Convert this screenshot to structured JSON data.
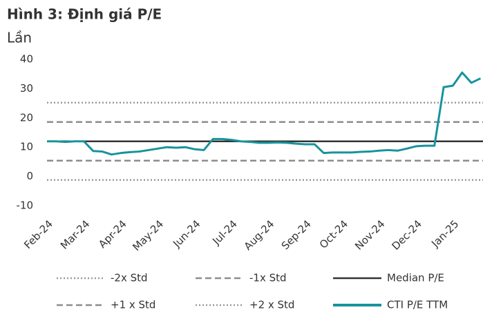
{
  "chart_data": {
    "type": "line",
    "title": "Hình 3: Định giá P/E",
    "y_label": "Lần",
    "ylim": [
      -10,
      40
    ],
    "yticks": [
      -10,
      0,
      10,
      20,
      30,
      40
    ],
    "categories": [
      "Feb-24",
      null,
      null,
      null,
      "Mar-24",
      null,
      null,
      null,
      "Apr-24",
      null,
      null,
      null,
      "May-24",
      null,
      null,
      null,
      "Jun-24",
      null,
      null,
      null,
      "Jul-24",
      null,
      null,
      null,
      "Aug-24",
      null,
      null,
      null,
      "Sep-24",
      null,
      null,
      null,
      "Oct-24",
      null,
      null,
      null,
      "Nov-24",
      null,
      null,
      null,
      "Dec-24",
      null,
      null,
      null,
      "Jan-25",
      null,
      null,
      null
    ],
    "reference_lines": [
      {
        "name": "-2x Std",
        "value": -1.2,
        "color": "#9a9a9a",
        "style": "dotted"
      },
      {
        "name": "-1x Std",
        "value": 5.4,
        "color": "#8c8c8c",
        "style": "dashed"
      },
      {
        "name": "Median P/E",
        "value": 12,
        "color": "#333333",
        "style": "solid"
      },
      {
        "name": "+1 x Std",
        "value": 18.6,
        "color": "#8c8c8c",
        "style": "dashed"
      },
      {
        "name": "+2 x Std",
        "value": 25.2,
        "color": "#9a9a9a",
        "style": "dotted"
      }
    ],
    "series": [
      {
        "name": "CTI P/E TTM",
        "color": "#16939c",
        "values": [
          12,
          12,
          11.8,
          12,
          12,
          8.7,
          8.5,
          7.5,
          8,
          8.3,
          8.5,
          9,
          9.5,
          10,
          9.8,
          10,
          9.3,
          9,
          12.8,
          12.8,
          12.5,
          12,
          11.8,
          11.5,
          11.5,
          11.6,
          11.5,
          11.2,
          11,
          11,
          8,
          8.2,
          8.2,
          8.2,
          8.4,
          8.5,
          8.8,
          9,
          8.8,
          9.5,
          10.3,
          10.5,
          10.5,
          30.5,
          31,
          35.5,
          32,
          33.5
        ]
      }
    ]
  }
}
